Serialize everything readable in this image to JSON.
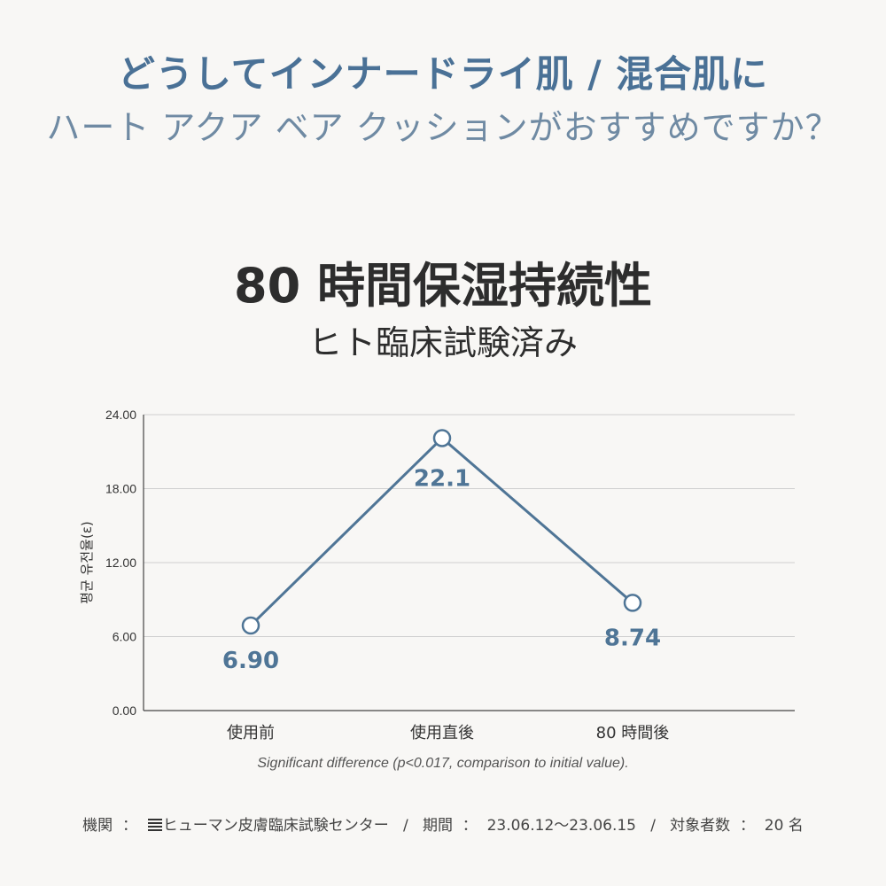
{
  "header": {
    "headline": "どうしてインナードライ肌 / 混合肌に",
    "subheadline": "ハート アクア ベア クッションがおすすめですか？"
  },
  "chart_data": {
    "type": "line",
    "title": "80 時間保湿持続性",
    "subtitle": "ヒト臨床試験済み",
    "categories": [
      "使用前",
      "使用直後",
      "80 時間後"
    ],
    "values": [
      6.9,
      22.1,
      8.74
    ],
    "data_labels": [
      "6.90",
      "22.1",
      "8.74"
    ],
    "ylabel": "평균 유전율(ε)",
    "ylim": [
      0,
      24
    ],
    "yticks": [
      "0.00",
      "6.00",
      "12.00",
      "18.00",
      "24.00"
    ],
    "grid": true,
    "line_color": "#4f7596",
    "note": "Significant difference (p<0.017, comparison to initial value)."
  },
  "footer": {
    "institution_label": "機関",
    "institution_logo": "striped-logo-icon",
    "institution": "ヒューマン皮膚臨床試験センター",
    "period_label": "期間",
    "period": "23.06.12～23.06.15",
    "subjects_label": "対象者数",
    "subjects": "20 名"
  }
}
